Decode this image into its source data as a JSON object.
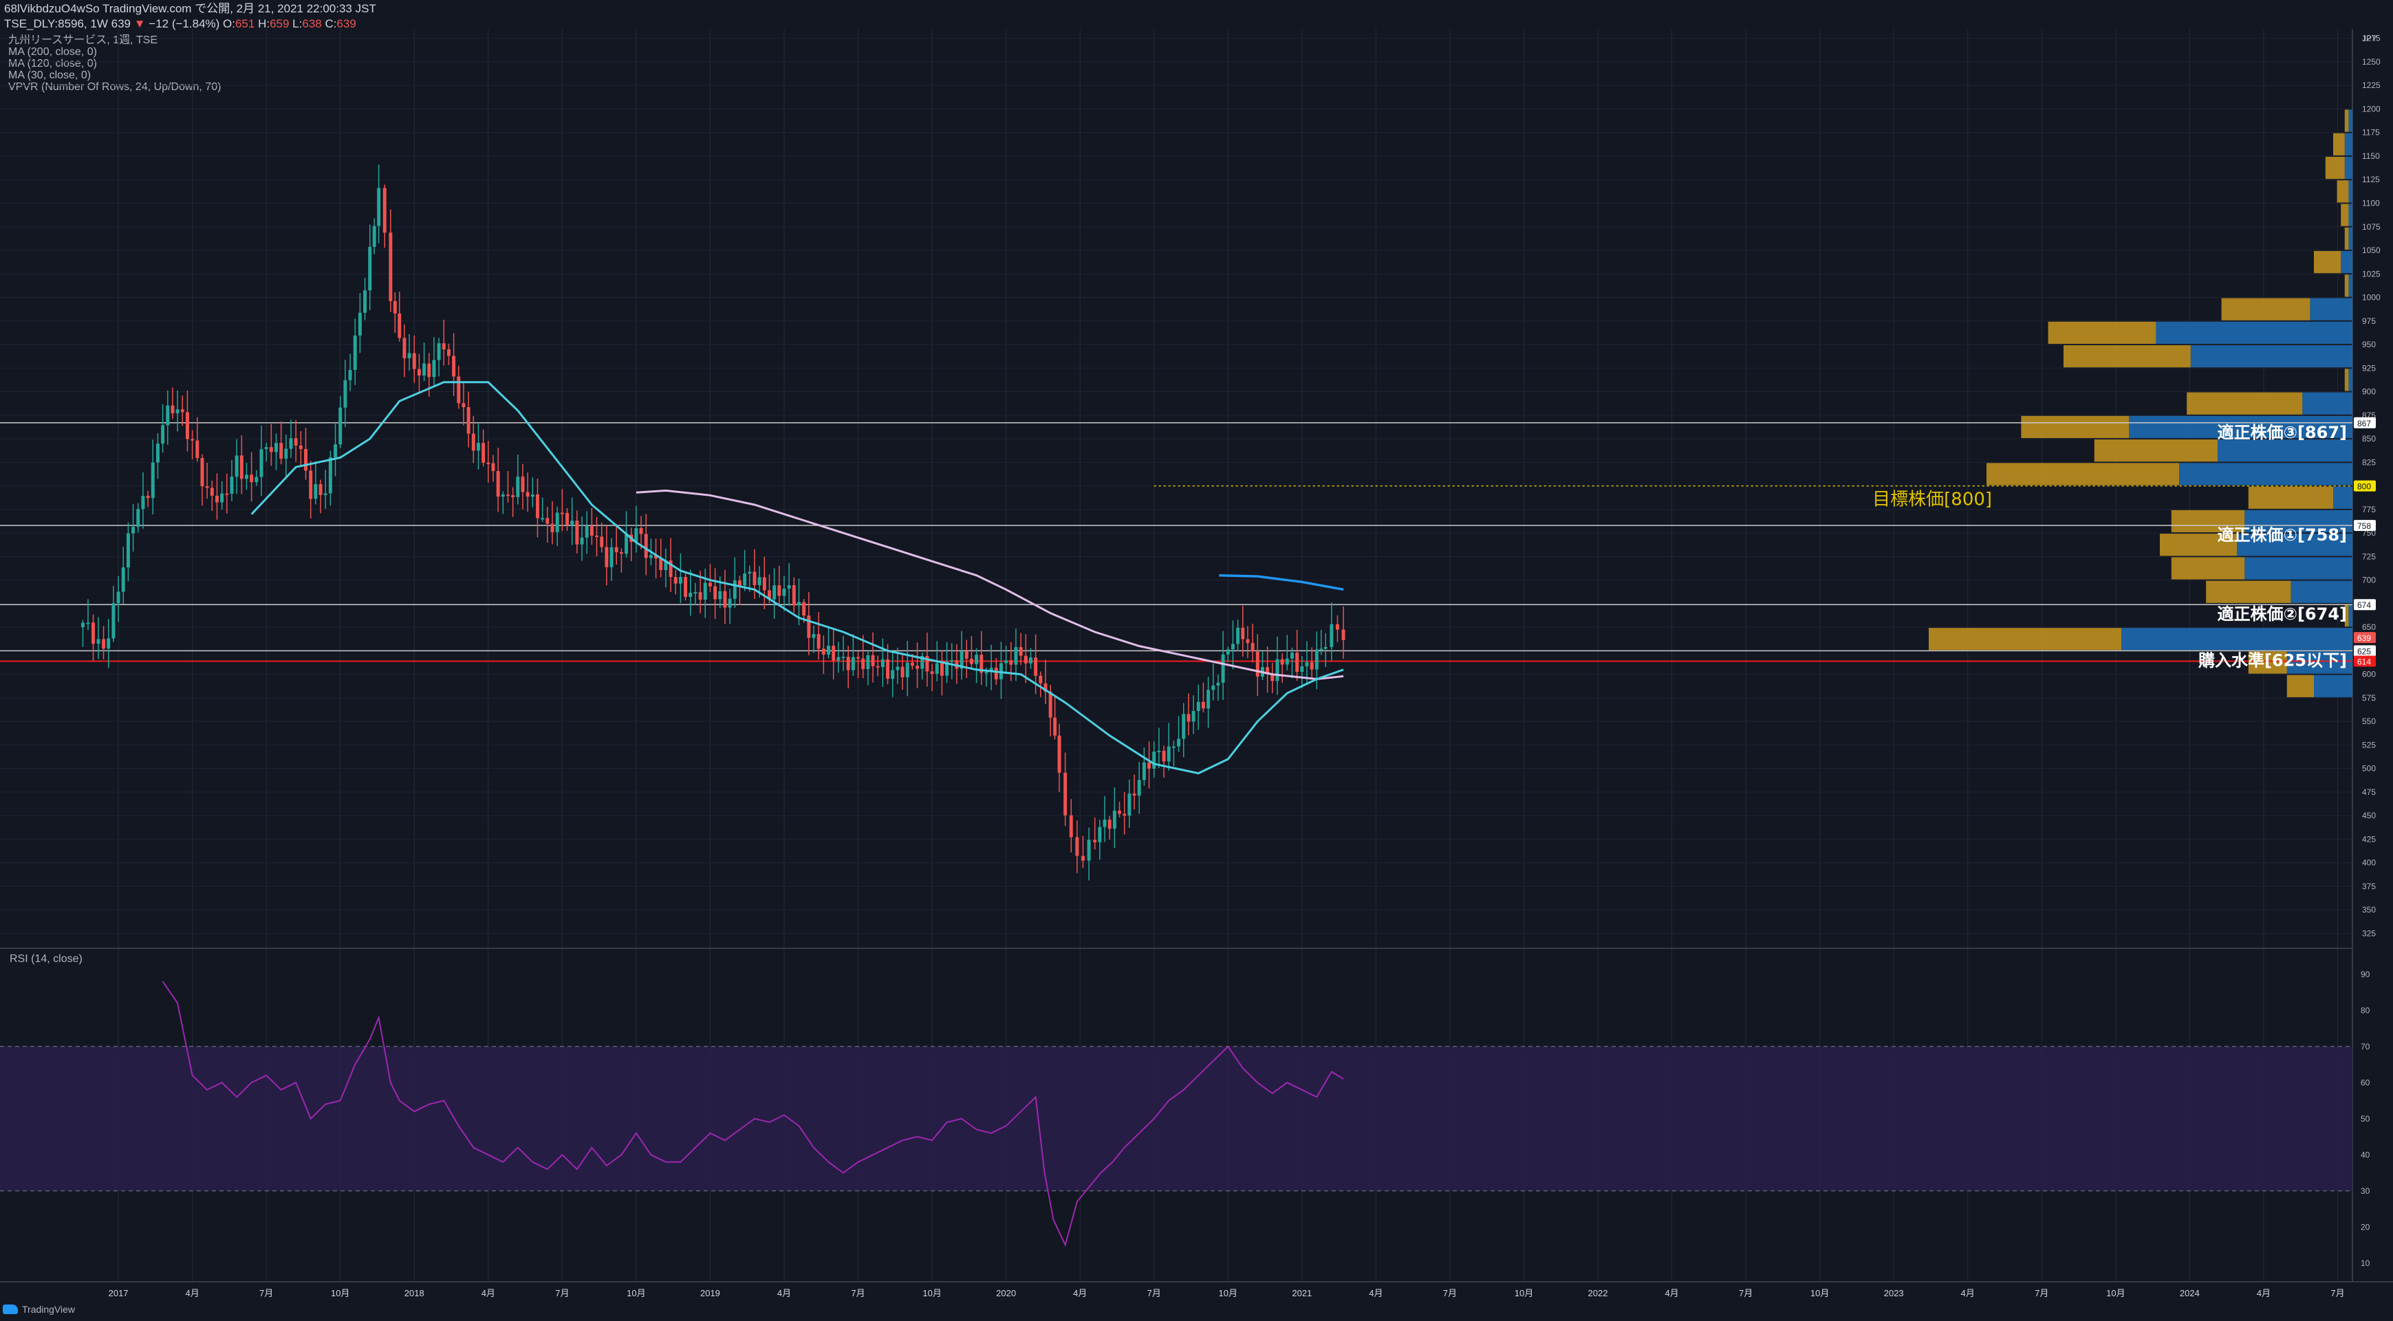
{
  "header": {
    "line1_prefix": "68lVikbdzuO4wSo TradingView.com で公開, 2月 21, 2021 22:00:33 JST",
    "symbol": "TSE_DLY:8596, 1W",
    "last": "639",
    "arrow": "▼",
    "change": "−12 (−1.84%)",
    "O": "651",
    "H": "659",
    "L": "638",
    "C": "639"
  },
  "indicators": [
    "九州リースサービス, 1週, TSE",
    "MA (200, close, 0)",
    "MA (120, close, 0)",
    "MA (30, close, 0)",
    "VPVR (Number Of Rows, 24, Up/Down, 70)"
  ],
  "rsi_title": "RSI (14, close)",
  "logo_text": "TradingView",
  "currency": "JPY",
  "colors": {
    "background": "#131722",
    "up": "#26a69a",
    "down": "#ef5350",
    "ma30": "#4dd0e1",
    "ma120": "#e1bee7",
    "ma200": "#2196f3",
    "rsi_line": "#9c27b0",
    "rsi_band": "#2a1f4a",
    "vp_up": "#1e6fb8",
    "vp_down": "#c8961e",
    "level_red": "#ef1c1c",
    "target": "#e0c200"
  },
  "chart_data": [
    {
      "type": "candlestick",
      "title": "九州リースサービス, 1週, TSE",
      "ylim": [
        310,
        1285
      ],
      "y_ticks": [
        325,
        350,
        375,
        400,
        425,
        450,
        475,
        500,
        525,
        550,
        575,
        600,
        625,
        650,
        675,
        700,
        725,
        750,
        775,
        800,
        825,
        850,
        875,
        900,
        925,
        950,
        975,
        1000,
        1025,
        1050,
        1075,
        1100,
        1125,
        1150,
        1175,
        1200,
        1225,
        1250,
        1275
      ],
      "x_ticks": [
        "2017",
        "4月",
        "7月",
        "10月",
        "2018",
        "4月",
        "7月",
        "10月",
        "2019",
        "4月",
        "7月",
        "10月",
        "2020",
        "4月",
        "7月",
        "10月",
        "2021",
        "4月",
        "7月",
        "10月",
        "2022",
        "4月",
        "7月",
        "10月",
        "2023",
        "4月",
        "7月",
        "10月",
        "2024",
        "4月",
        "7月"
      ],
      "x_tick_times": [
        2017.0,
        2017.25,
        2017.5,
        2017.75,
        2018.0,
        2018.25,
        2018.5,
        2018.75,
        2019.0,
        2019.25,
        2019.5,
        2019.75,
        2020.0,
        2020.25,
        2020.5,
        2020.75,
        2021.0,
        2021.25,
        2021.5,
        2021.75,
        2022.0,
        2022.25,
        2022.5,
        2022.75,
        2023.0,
        2023.25,
        2023.5,
        2023.75,
        2024.0,
        2024.25,
        2024.5
      ],
      "x_range": [
        2016.6,
        2024.55
      ],
      "close_path": [
        [
          2016.88,
          650
        ],
        [
          2016.95,
          630
        ],
        [
          2017.0,
          690
        ],
        [
          2017.05,
          760
        ],
        [
          2017.1,
          800
        ],
        [
          2017.15,
          870
        ],
        [
          2017.2,
          880
        ],
        [
          2017.25,
          850
        ],
        [
          2017.3,
          790
        ],
        [
          2017.35,
          780
        ],
        [
          2017.4,
          830
        ],
        [
          2017.45,
          800
        ],
        [
          2017.5,
          840
        ],
        [
          2017.55,
          840
        ],
        [
          2017.6,
          850
        ],
        [
          2017.65,
          790
        ],
        [
          2017.7,
          800
        ],
        [
          2017.75,
          880
        ],
        [
          2017.8,
          950
        ],
        [
          2017.85,
          1050
        ],
        [
          2017.88,
          1120
        ],
        [
          2017.92,
          1000
        ],
        [
          2017.95,
          950
        ],
        [
          2018.0,
          930
        ],
        [
          2018.05,
          920
        ],
        [
          2018.1,
          950
        ],
        [
          2018.15,
          900
        ],
        [
          2018.2,
          840
        ],
        [
          2018.25,
          820
        ],
        [
          2018.3,
          790
        ],
        [
          2018.35,
          800
        ],
        [
          2018.4,
          780
        ],
        [
          2018.45,
          760
        ],
        [
          2018.5,
          770
        ],
        [
          2018.55,
          740
        ],
        [
          2018.6,
          760
        ],
        [
          2018.65,
          720
        ],
        [
          2018.7,
          730
        ],
        [
          2018.75,
          760
        ],
        [
          2018.8,
          720
        ],
        [
          2018.85,
          710
        ],
        [
          2018.9,
          700
        ],
        [
          2018.95,
          680
        ],
        [
          2019.0,
          690
        ],
        [
          2019.05,
          680
        ],
        [
          2019.1,
          700
        ],
        [
          2019.15,
          700
        ],
        [
          2019.2,
          690
        ],
        [
          2019.25,
          690
        ],
        [
          2019.3,
          670
        ],
        [
          2019.35,
          640
        ],
        [
          2019.4,
          620
        ],
        [
          2019.45,
          610
        ],
        [
          2019.5,
          620
        ],
        [
          2019.55,
          610
        ],
        [
          2019.6,
          600
        ],
        [
          2019.65,
          610
        ],
        [
          2019.7,
          610
        ],
        [
          2019.75,
          600
        ],
        [
          2019.8,
          615
        ],
        [
          2019.85,
          615
        ],
        [
          2019.9,
          610
        ],
        [
          2019.95,
          605
        ],
        [
          2020.0,
          610
        ],
        [
          2020.05,
          620
        ],
        [
          2020.1,
          610
        ],
        [
          2020.15,
          560
        ],
        [
          2020.18,
          490
        ],
        [
          2020.22,
          420
        ],
        [
          2020.26,
          410
        ],
        [
          2020.3,
          430
        ],
        [
          2020.35,
          440
        ],
        [
          2020.4,
          460
        ],
        [
          2020.45,
          490
        ],
        [
          2020.5,
          510
        ],
        [
          2020.55,
          520
        ],
        [
          2020.6,
          550
        ],
        [
          2020.65,
          560
        ],
        [
          2020.7,
          590
        ],
        [
          2020.75,
          630
        ],
        [
          2020.8,
          640
        ],
        [
          2020.85,
          610
        ],
        [
          2020.9,
          600
        ],
        [
          2020.95,
          615
        ],
        [
          2021.0,
          610
        ],
        [
          2021.05,
          620
        ],
        [
          2021.08,
          630
        ],
        [
          2021.12,
          651
        ],
        [
          2021.14,
          639
        ]
      ],
      "ma30": [
        [
          2017.45,
          770
        ],
        [
          2017.6,
          820
        ],
        [
          2017.75,
          830
        ],
        [
          2017.85,
          850
        ],
        [
          2017.95,
          890
        ],
        [
          2018.1,
          910
        ],
        [
          2018.25,
          910
        ],
        [
          2018.35,
          880
        ],
        [
          2018.5,
          820
        ],
        [
          2018.6,
          780
        ],
        [
          2018.75,
          740
        ],
        [
          2018.9,
          710
        ],
        [
          2019.0,
          700
        ],
        [
          2019.15,
          690
        ],
        [
          2019.3,
          660
        ],
        [
          2019.45,
          645
        ],
        [
          2019.6,
          625
        ],
        [
          2019.75,
          615
        ],
        [
          2019.9,
          605
        ],
        [
          2020.05,
          600
        ],
        [
          2020.2,
          570
        ],
        [
          2020.35,
          535
        ],
        [
          2020.5,
          505
        ],
        [
          2020.65,
          495
        ],
        [
          2020.75,
          510
        ],
        [
          2020.85,
          550
        ],
        [
          2020.95,
          580
        ],
        [
          2021.05,
          595
        ],
        [
          2021.14,
          605
        ]
      ],
      "ma120": [
        [
          2018.75,
          793
        ],
        [
          2018.85,
          795
        ],
        [
          2019.0,
          790
        ],
        [
          2019.15,
          780
        ],
        [
          2019.3,
          765
        ],
        [
          2019.45,
          750
        ],
        [
          2019.6,
          735
        ],
        [
          2019.75,
          720
        ],
        [
          2019.9,
          705
        ],
        [
          2020.0,
          690
        ],
        [
          2020.15,
          665
        ],
        [
          2020.3,
          645
        ],
        [
          2020.45,
          630
        ],
        [
          2020.6,
          620
        ],
        [
          2020.75,
          610
        ],
        [
          2020.9,
          600
        ],
        [
          2021.05,
          595
        ],
        [
          2021.14,
          598
        ]
      ],
      "ma200": [
        [
          2020.72,
          705
        ],
        [
          2020.85,
          704
        ],
        [
          2021.0,
          698
        ],
        [
          2021.14,
          690
        ]
      ],
      "levels": [
        {
          "label": "適正株価③[867]",
          "value": 867,
          "color": "#c9c9c9"
        },
        {
          "label": "適正株価①[758]",
          "value": 758,
          "color": "#c9c9c9"
        },
        {
          "label": "適正株価②[674]",
          "value": 674,
          "color": "#c9c9c9"
        },
        {
          "label": "購入水準[625以下]",
          "value": 625,
          "color": "#c9c9c9"
        },
        {
          "label": "",
          "value": 614,
          "color": "#ef1c1c"
        }
      ],
      "target": {
        "label": "目標株価[800]",
        "value": 800
      },
      "price_tags": [
        {
          "text": "867",
          "value": 867,
          "bg": "#ffffff",
          "fg": "#131722"
        },
        {
          "text": "800",
          "value": 800,
          "bg": "#f2e400",
          "fg": "#131722"
        },
        {
          "text": "758",
          "value": 758,
          "bg": "#ffffff",
          "fg": "#131722"
        },
        {
          "text": "674",
          "value": 674,
          "bg": "#ffffff",
          "fg": "#131722"
        },
        {
          "text": "639",
          "value": 639,
          "bg": "#ef5350",
          "fg": "#ffffff"
        },
        {
          "text": "625",
          "value": 625,
          "bg": "#ffffff",
          "fg": "#131722"
        },
        {
          "text": "614",
          "value": 614,
          "bg": "#ef1c1c",
          "fg": "#ffffff"
        }
      ],
      "volume_profile": [
        {
          "price": 1187.5,
          "up": 0.01,
          "down": 0.01
        },
        {
          "price": 1162.5,
          "up": 0.02,
          "down": 0.03
        },
        {
          "price": 1137.5,
          "up": 0.02,
          "down": 0.05
        },
        {
          "price": 1112.5,
          "up": 0.01,
          "down": 0.03
        },
        {
          "price": 1087.5,
          "up": 0.01,
          "down": 0.02
        },
        {
          "price": 1062.5,
          "up": 0.01,
          "down": 0.01
        },
        {
          "price": 1037.5,
          "up": 0.03,
          "down": 0.07
        },
        {
          "price": 1012.5,
          "up": 0.01,
          "down": 0.01
        },
        {
          "price": 987.5,
          "up": 0.11,
          "down": 0.23
        },
        {
          "price": 962.5,
          "up": 0.51,
          "down": 0.28
        },
        {
          "price": 937.5,
          "up": 0.42,
          "down": 0.33
        },
        {
          "price": 912.5,
          "up": 0.01,
          "down": 0.01
        },
        {
          "price": 887.5,
          "up": 0.13,
          "down": 0.3
        },
        {
          "price": 862.5,
          "up": 0.58,
          "down": 0.28
        },
        {
          "price": 837.5,
          "up": 0.35,
          "down": 0.32
        },
        {
          "price": 812.5,
          "up": 0.45,
          "down": 0.5
        },
        {
          "price": 787.5,
          "up": 0.05,
          "down": 0.22
        },
        {
          "price": 762.5,
          "up": 0.28,
          "down": 0.19
        },
        {
          "price": 737.5,
          "up": 0.3,
          "down": 0.2
        },
        {
          "price": 712.5,
          "up": 0.28,
          "down": 0.19
        },
        {
          "price": 687.5,
          "up": 0.16,
          "down": 0.22
        },
        {
          "price": 662.5,
          "up": 0.01,
          "down": 0.01
        },
        {
          "price": 637.5,
          "up": 0.6,
          "down": 0.5
        },
        {
          "price": 612.5,
          "up": 0.17,
          "down": 0.1
        },
        {
          "price": 587.5,
          "up": 0.1,
          "down": 0.07
        }
      ]
    },
    {
      "type": "line",
      "title": "RSI (14, close)",
      "ylim": [
        5,
        97
      ],
      "y_ticks": [
        10,
        20,
        30,
        40,
        50,
        60,
        70,
        80,
        90
      ],
      "band": [
        30,
        70
      ],
      "values": [
        [
          2017.15,
          88
        ],
        [
          2017.2,
          82
        ],
        [
          2017.25,
          62
        ],
        [
          2017.3,
          58
        ],
        [
          2017.35,
          60
        ],
        [
          2017.4,
          56
        ],
        [
          2017.45,
          60
        ],
        [
          2017.5,
          62
        ],
        [
          2017.55,
          58
        ],
        [
          2017.6,
          60
        ],
        [
          2017.65,
          50
        ],
        [
          2017.7,
          54
        ],
        [
          2017.75,
          55
        ],
        [
          2017.8,
          65
        ],
        [
          2017.85,
          72
        ],
        [
          2017.88,
          78
        ],
        [
          2017.92,
          60
        ],
        [
          2017.95,
          55
        ],
        [
          2018.0,
          52
        ],
        [
          2018.05,
          54
        ],
        [
          2018.1,
          55
        ],
        [
          2018.15,
          48
        ],
        [
          2018.2,
          42
        ],
        [
          2018.25,
          40
        ],
        [
          2018.3,
          38
        ],
        [
          2018.35,
          42
        ],
        [
          2018.4,
          38
        ],
        [
          2018.45,
          36
        ],
        [
          2018.5,
          40
        ],
        [
          2018.55,
          36
        ],
        [
          2018.6,
          42
        ],
        [
          2018.65,
          37
        ],
        [
          2018.7,
          40
        ],
        [
          2018.75,
          46
        ],
        [
          2018.8,
          40
        ],
        [
          2018.85,
          38
        ],
        [
          2018.9,
          38
        ],
        [
          2018.95,
          42
        ],
        [
          2019.0,
          46
        ],
        [
          2019.05,
          44
        ],
        [
          2019.1,
          47
        ],
        [
          2019.15,
          50
        ],
        [
          2019.2,
          49
        ],
        [
          2019.25,
          51
        ],
        [
          2019.3,
          48
        ],
        [
          2019.35,
          42
        ],
        [
          2019.4,
          38
        ],
        [
          2019.45,
          35
        ],
        [
          2019.5,
          38
        ],
        [
          2019.55,
          40
        ],
        [
          2019.6,
          42
        ],
        [
          2019.65,
          44
        ],
        [
          2019.7,
          45
        ],
        [
          2019.75,
          44
        ],
        [
          2019.8,
          49
        ],
        [
          2019.85,
          50
        ],
        [
          2019.9,
          47
        ],
        [
          2019.95,
          46
        ],
        [
          2020.0,
          48
        ],
        [
          2020.05,
          52
        ],
        [
          2020.1,
          56
        ],
        [
          2020.13,
          35
        ],
        [
          2020.16,
          22
        ],
        [
          2020.2,
          15
        ],
        [
          2020.24,
          27
        ],
        [
          2020.28,
          31
        ],
        [
          2020.32,
          35
        ],
        [
          2020.36,
          38
        ],
        [
          2020.4,
          42
        ],
        [
          2020.45,
          46
        ],
        [
          2020.5,
          50
        ],
        [
          2020.55,
          55
        ],
        [
          2020.6,
          58
        ],
        [
          2020.65,
          62
        ],
        [
          2020.7,
          66
        ],
        [
          2020.75,
          70
        ],
        [
          2020.8,
          64
        ],
        [
          2020.85,
          60
        ],
        [
          2020.9,
          57
        ],
        [
          2020.95,
          60
        ],
        [
          2021.0,
          58
        ],
        [
          2021.05,
          56
        ],
        [
          2021.1,
          63
        ],
        [
          2021.14,
          61
        ]
      ]
    }
  ]
}
